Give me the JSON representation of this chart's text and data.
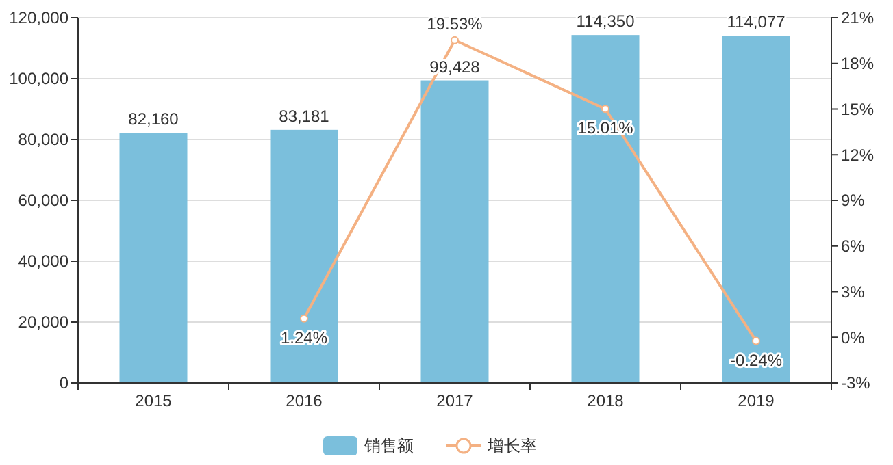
{
  "chart_data": {
    "type": "bar",
    "categories": [
      "2015",
      "2016",
      "2017",
      "2018",
      "2019"
    ],
    "series": [
      {
        "name": "销售额",
        "type": "bar",
        "color": "#7bbfdc",
        "values": [
          82160,
          83181,
          99428,
          114350,
          114077
        ],
        "value_labels": [
          "82,160",
          "83,181",
          "99,428",
          "114,350",
          "114,077"
        ]
      },
      {
        "name": "增长率",
        "type": "line",
        "axis": "y2",
        "color": "#f4b183",
        "marker": "circle",
        "values": [
          null,
          1.24,
          19.53,
          15.01,
          -0.24
        ],
        "value_labels": [
          null,
          "1.24%",
          "19.53%",
          "15.01%",
          "-0.24%"
        ]
      }
    ],
    "ylim": [
      0,
      120000
    ],
    "yticks": [
      0,
      {
        "value": 20000,
        "label": "20,000"
      },
      {
        "value": 40000,
        "label": "40,000"
      },
      {
        "value": 60000,
        "label": "60,000"
      },
      {
        "value": 80000,
        "label": "80,000"
      },
      {
        "value": 100000,
        "label": "100,000"
      },
      {
        "value": 120000,
        "label": "120,000"
      }
    ],
    "y2lim": [
      -3,
      21
    ],
    "y2ticks": [
      {
        "value": -3,
        "label": "-3%"
      },
      {
        "value": 0,
        "label": "0%"
      },
      {
        "value": 3,
        "label": "3%"
      },
      {
        "value": 6,
        "label": "6%"
      },
      {
        "value": 9,
        "label": "9%"
      },
      {
        "value": 12,
        "label": "12%"
      },
      {
        "value": 15,
        "label": "15%"
      },
      {
        "value": 18,
        "label": "18%"
      },
      {
        "value": 21,
        "label": "21%"
      }
    ],
    "grid": "y",
    "legend": "bottom"
  }
}
